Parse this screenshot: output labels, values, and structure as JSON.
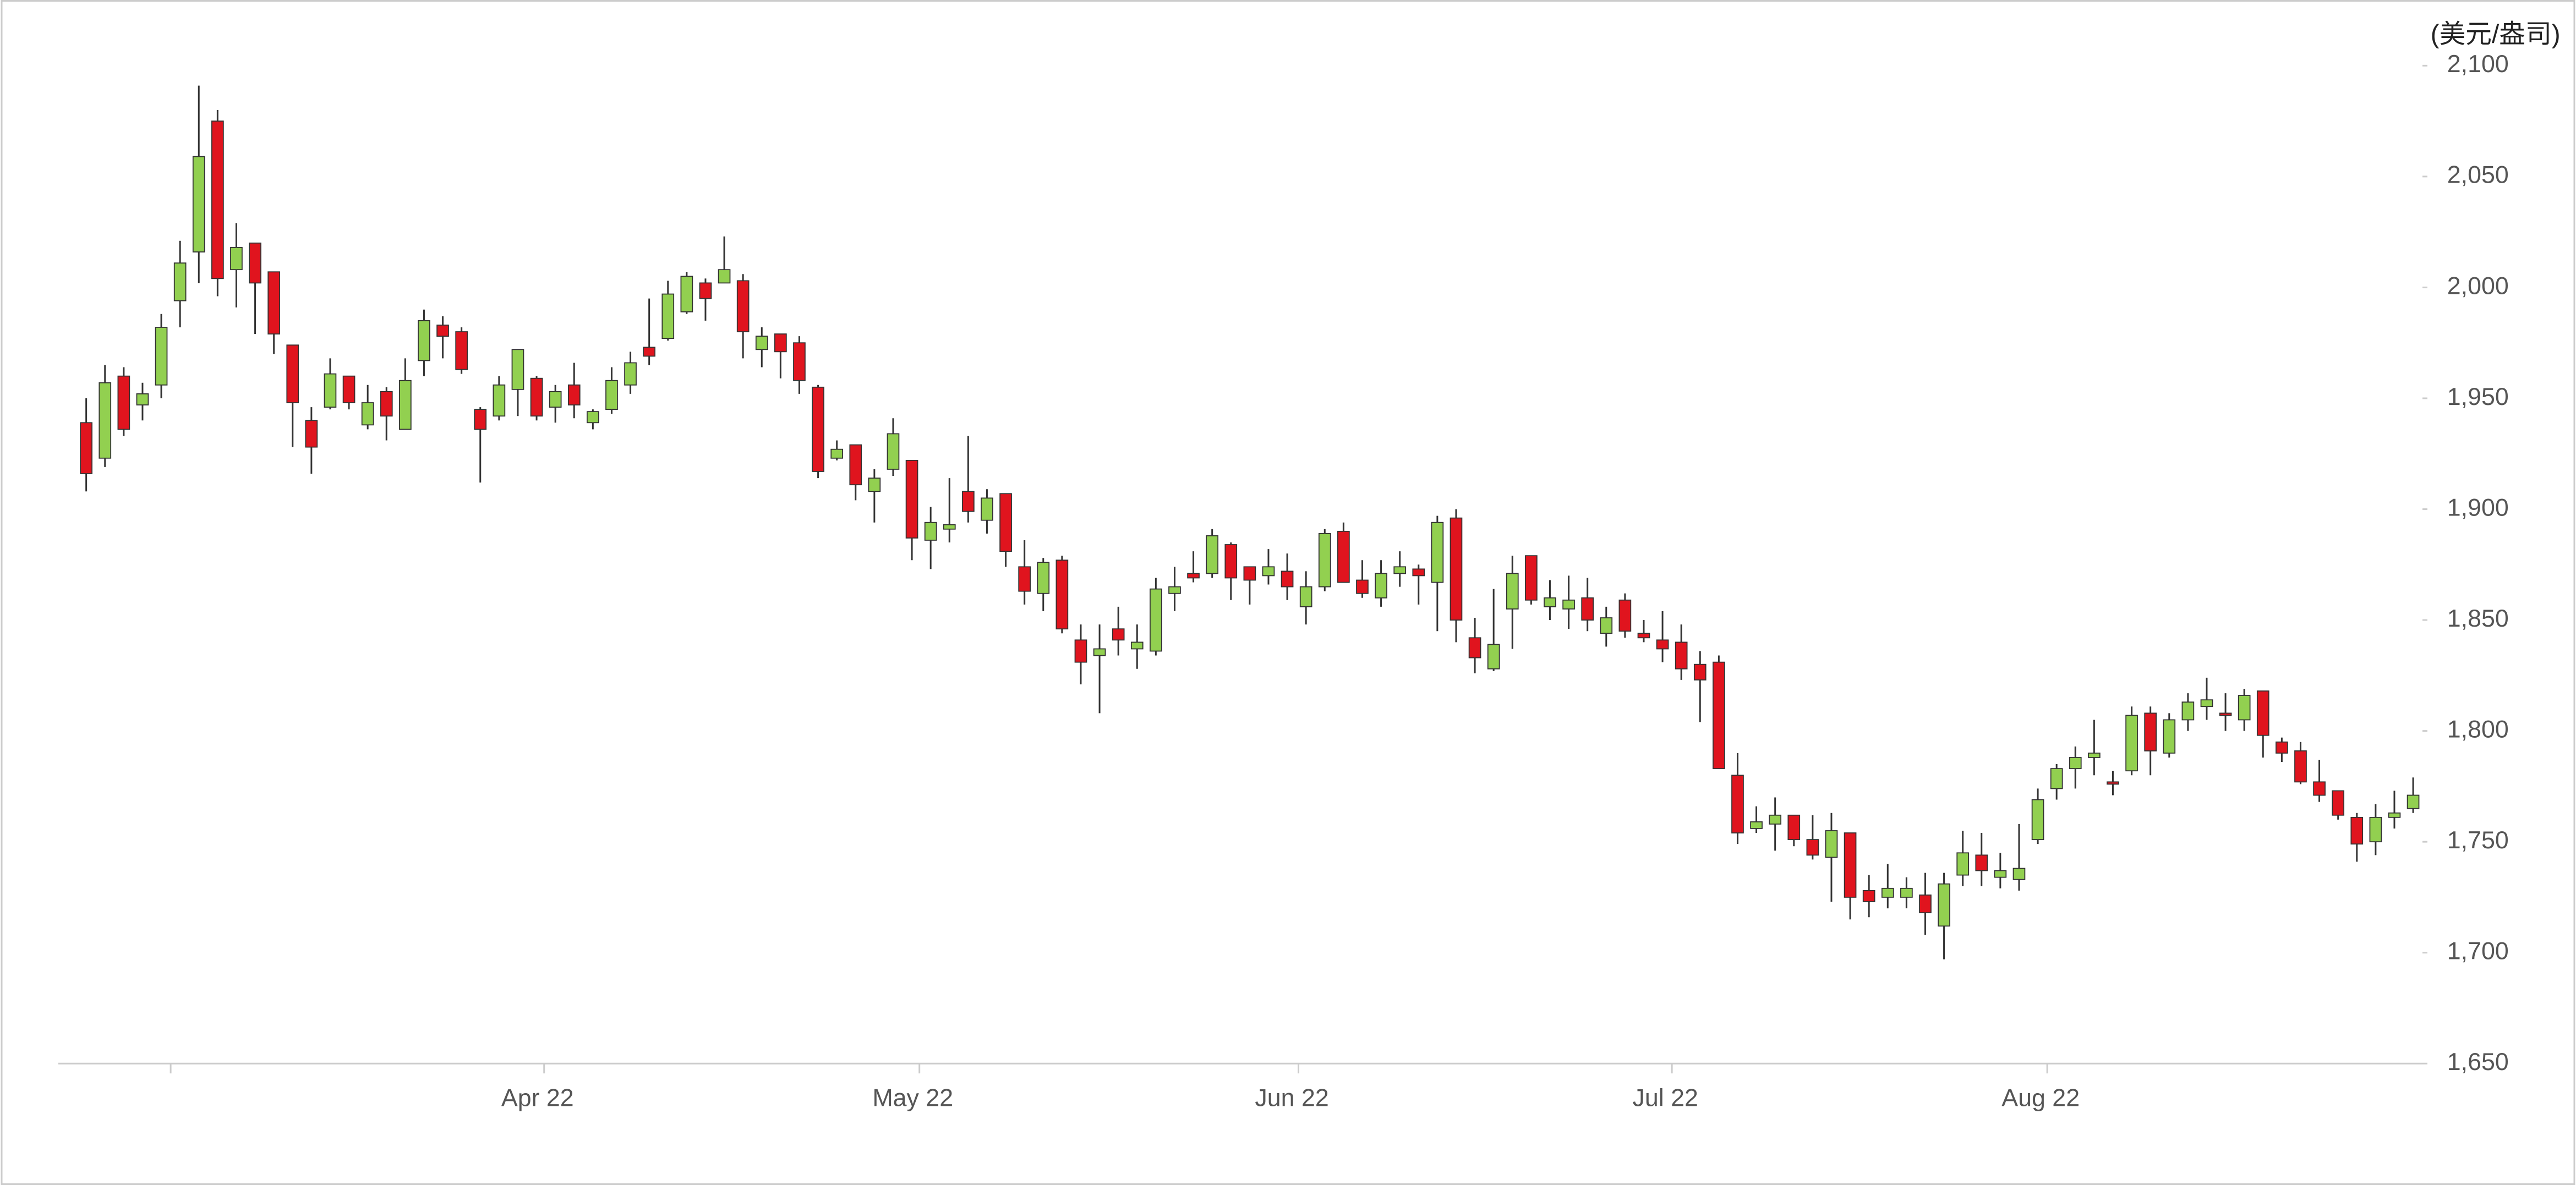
{
  "chart_data": {
    "type": "candlestick",
    "y_unit": "(美元/盎司)",
    "up_color": "#92d050",
    "down_color": "#e0141e",
    "outline_color": "#333333",
    "ylim": [
      1650,
      2100
    ],
    "yticks": [
      {
        "value": 1650,
        "label": "1,650"
      },
      {
        "value": 1700,
        "label": "1,700"
      },
      {
        "value": 1750,
        "label": "1,750"
      },
      {
        "value": 1800,
        "label": "1,800"
      },
      {
        "value": 1850,
        "label": "1,850"
      },
      {
        "value": 1900,
        "label": "1,900"
      },
      {
        "value": 1950,
        "label": "1,950"
      },
      {
        "value": 2000,
        "label": "2,000"
      },
      {
        "value": 2050,
        "label": "2,050"
      },
      {
        "value": 2100,
        "label": "2,100"
      }
    ],
    "xticks": [
      {
        "value": 4.5,
        "label": null
      },
      {
        "value": 24.4,
        "label": "Apr 22"
      },
      {
        "value": 44.4,
        "label": "May 22"
      },
      {
        "value": 64.6,
        "label": "Jun 22"
      },
      {
        "value": 84.5,
        "label": "Jul 22"
      },
      {
        "value": 104.5,
        "label": "Aug 22"
      }
    ],
    "open": [
      1939,
      1923,
      1960,
      1947,
      1956,
      1994,
      2016,
      2075,
      2008,
      2020,
      2007,
      1974,
      1940,
      1946,
      1960,
      1938,
      1953,
      1936,
      1967,
      1983,
      1980,
      1945,
      1942,
      1954,
      1959,
      1946,
      1956,
      1939,
      1945,
      1956,
      1973,
      1977,
      1989,
      2002,
      2002,
      2003,
      1972,
      1979,
      1975,
      1955,
      1923,
      1929,
      1908,
      1918,
      1922,
      1886,
      1891,
      1908,
      1895,
      1907,
      1874,
      1862,
      1877,
      1841,
      1834,
      1846,
      1837,
      1836,
      1862,
      1871,
      1871,
      1884,
      1874,
      1870,
      1872,
      1856,
      1865,
      1890,
      1868,
      1860,
      1871,
      1873,
      1867,
      1896,
      1842,
      1828,
      1855,
      1879,
      1856,
      1855,
      1860,
      1844,
      1859,
      1844,
      1841,
      1840,
      1830,
      1831,
      1780,
      1756,
      1758,
      1762,
      1751,
      1743,
      1754,
      1728,
      1725,
      1725,
      1726,
      1712,
      1735,
      1744,
      1734,
      1733,
      1751,
      1774,
      1783,
      1788,
      1777,
      1782,
      1808,
      1790,
      1805,
      1811,
      1808,
      1805,
      1818,
      1795,
      1791,
      1777,
      1773,
      1761,
      1750,
      1761,
      1765
    ],
    "high": [
      1950,
      1965,
      1964,
      1957,
      1988,
      2021,
      2091,
      2080,
      2029,
      2020,
      2007,
      1974,
      1946,
      1968,
      1960,
      1956,
      1955,
      1968,
      1990,
      1987,
      1982,
      1946,
      1960,
      1972,
      1960,
      1956,
      1966,
      1945,
      1964,
      1971,
      1995,
      2003,
      2007,
      2004,
      2023,
      2006,
      1982,
      1979,
      1978,
      1956,
      1931,
      1929,
      1918,
      1941,
      1922,
      1901,
      1914,
      1933,
      1909,
      1907,
      1886,
      1878,
      1879,
      1848,
      1848,
      1856,
      1848,
      1869,
      1874,
      1881,
      1891,
      1885,
      1874,
      1882,
      1880,
      1872,
      1891,
      1894,
      1877,
      1877,
      1881,
      1875,
      1897,
      1900,
      1851,
      1864,
      1879,
      1879,
      1868,
      1870,
      1869,
      1856,
      1862,
      1850,
      1854,
      1848,
      1836,
      1834,
      1790,
      1766,
      1770,
      1762,
      1762,
      1763,
      1754,
      1735,
      1740,
      1734,
      1736,
      1736,
      1755,
      1754,
      1745,
      1758,
      1774,
      1785,
      1793,
      1805,
      1782,
      1811,
      1811,
      1808,
      1817,
      1824,
      1817,
      1819,
      1818,
      1797,
      1795,
      1787,
      1773,
      1763,
      1767,
      1773,
      1779
    ],
    "low": [
      1908,
      1919,
      1933,
      1940,
      1950,
      1982,
      2002,
      1996,
      1991,
      1979,
      1970,
      1928,
      1916,
      1945,
      1945,
      1936,
      1931,
      1936,
      1960,
      1968,
      1961,
      1912,
      1940,
      1942,
      1940,
      1939,
      1941,
      1936,
      1943,
      1952,
      1965,
      1976,
      1988,
      1985,
      2002,
      1968,
      1964,
      1959,
      1952,
      1914,
      1922,
      1904,
      1894,
      1915,
      1877,
      1873,
      1885,
      1894,
      1889,
      1874,
      1857,
      1854,
      1844,
      1821,
      1808,
      1834,
      1828,
      1834,
      1854,
      1867,
      1869,
      1859,
      1857,
      1866,
      1859,
      1848,
      1863,
      1867,
      1860,
      1856,
      1865,
      1857,
      1845,
      1840,
      1826,
      1827,
      1837,
      1857,
      1850,
      1846,
      1845,
      1838,
      1842,
      1840,
      1831,
      1823,
      1804,
      1783,
      1749,
      1754,
      1746,
      1748,
      1742,
      1723,
      1715,
      1716,
      1720,
      1720,
      1708,
      1697,
      1730,
      1730,
      1729,
      1728,
      1749,
      1769,
      1774,
      1780,
      1771,
      1780,
      1780,
      1788,
      1800,
      1805,
      1800,
      1800,
      1788,
      1786,
      1776,
      1768,
      1760,
      1741,
      1744,
      1756,
      1763
    ],
    "close": [
      1916,
      1957,
      1936,
      1952,
      1982,
      2011,
      2059,
      2004,
      2018,
      2002,
      1979,
      1948,
      1928,
      1961,
      1948,
      1948,
      1942,
      1958,
      1985,
      1978,
      1963,
      1936,
      1956,
      1972,
      1942,
      1953,
      1947,
      1944,
      1958,
      1966,
      1969,
      1997,
      2005,
      1995,
      2008,
      1980,
      1978,
      1971,
      1958,
      1917,
      1927,
      1911,
      1914,
      1934,
      1887,
      1894,
      1893,
      1899,
      1905,
      1881,
      1863,
      1876,
      1846,
      1831,
      1837,
      1841,
      1840,
      1864,
      1865,
      1869,
      1888,
      1869,
      1868,
      1874,
      1865,
      1865,
      1889,
      1867,
      1862,
      1871,
      1874,
      1870,
      1894,
      1850,
      1833,
      1839,
      1871,
      1859,
      1860,
      1859,
      1850,
      1851,
      1845,
      1842,
      1837,
      1828,
      1823,
      1783,
      1754,
      1759,
      1762,
      1751,
      1744,
      1755,
      1725,
      1723,
      1729,
      1729,
      1718,
      1731,
      1745,
      1737,
      1737,
      1738,
      1769,
      1783,
      1788,
      1790,
      1776,
      1807,
      1791,
      1805,
      1813,
      1814,
      1807,
      1816,
      1798,
      1790,
      1777,
      1771,
      1762,
      1749,
      1761,
      1763,
      1771
    ]
  }
}
